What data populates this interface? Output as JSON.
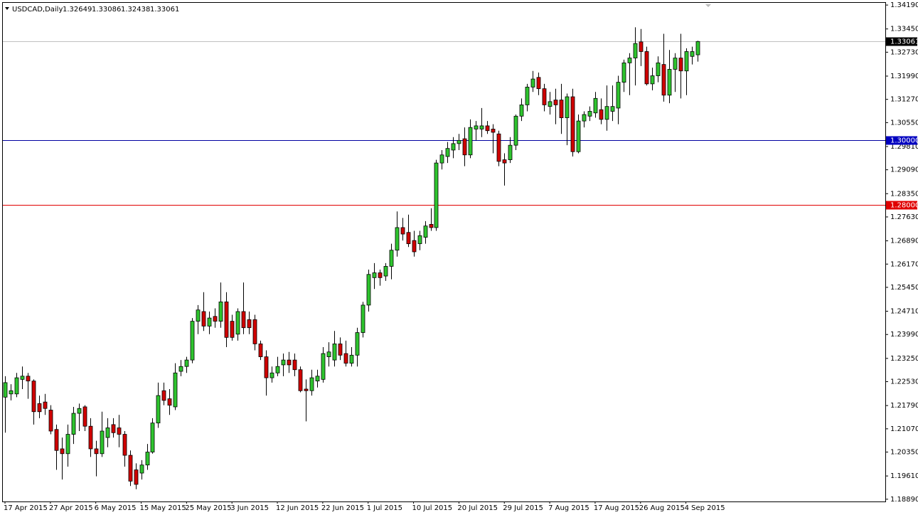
{
  "chart_data": {
    "type": "candlestick",
    "title": "USDCAD,Daily",
    "header_values": [
      "1.32649",
      "1.33086",
      "1.32438",
      "1.33061"
    ],
    "up_color": "#2ec42e",
    "down_color": "#d00000",
    "wick_color": "#000000",
    "categories": [
      "17 Apr 2015",
      null,
      null,
      null,
      null,
      null,
      null,
      null,
      "27 Apr 2015",
      null,
      null,
      null,
      null,
      null,
      null,
      null,
      "6 May 2015",
      null,
      null,
      null,
      null,
      null,
      null,
      null,
      "15 May 2015",
      null,
      null,
      null,
      null,
      null,
      null,
      null,
      "25 May 2015",
      null,
      null,
      null,
      null,
      null,
      null,
      null,
      "3 Jun 2015",
      null,
      null,
      null,
      null,
      null,
      null,
      null,
      "12 Jun 2015",
      null,
      null,
      null,
      null,
      null,
      null,
      null,
      "22 Jun 2015",
      null,
      null,
      null,
      null,
      null,
      null,
      null,
      "1 Jul 2015",
      null,
      null,
      null,
      null,
      null,
      null,
      null,
      "10 Jul 2015",
      null,
      null,
      null,
      null,
      null,
      null,
      null,
      "20 Jul 2015",
      null,
      null,
      null,
      null,
      null,
      null,
      null,
      "29 Jul 2015",
      null,
      null,
      null,
      null,
      null,
      null,
      null,
      "7 Aug 2015",
      null,
      null,
      null,
      null,
      null,
      null,
      null,
      "17 Aug 2015",
      null,
      null,
      null,
      null,
      null,
      null,
      null,
      "26 Aug 2015",
      null,
      null,
      null,
      null,
      null,
      null,
      null,
      "4 Sep 2015",
      null,
      null
    ],
    "open": [
      1.2205,
      1.2215,
      1.2215,
      1.226,
      1.227,
      1.2255,
      1.2185,
      1.219,
      1.2165,
      1.2105,
      1.2045,
      1.203,
      1.209,
      1.2155,
      1.2175,
      1.2115,
      1.2045,
      1.203,
      1.208,
      1.212,
      1.211,
      1.209,
      1.2025,
      1.198,
      1.197,
      1.1995,
      1.2035,
      1.2125,
      1.2225,
      1.22,
      1.2175,
      1.2285,
      1.23,
      1.232,
      1.244,
      1.247,
      1.2425,
      1.2455,
      1.244,
      1.25,
      1.244,
      1.24,
      1.247,
      1.2445,
      1.2445,
      1.237,
      1.233,
      1.2265,
      1.228,
      1.2305,
      1.232,
      1.232,
      1.229,
      1.223,
      1.2225,
      1.2255,
      1.226,
      1.233,
      1.232,
      1.237,
      1.234,
      1.231,
      1.2335,
      1.2405,
      1.249,
      1.2575,
      1.259,
      1.258,
      1.261,
      1.266,
      1.273,
      1.2715,
      1.269,
      1.268,
      1.27,
      1.274,
      1.273,
      1.293,
      1.295,
      1.297,
      1.299,
      1.3005,
      1.2955,
      1.3035,
      1.3035,
      1.3045,
      1.3035,
      1.302,
      1.294,
      1.294,
      1.2985,
      1.3075,
      1.311,
      1.3165,
      1.3195,
      1.316,
      1.3105,
      1.3125,
      1.3125,
      1.307,
      1.3135,
      1.2965,
      1.306,
      1.3075,
      1.3085,
      1.3095,
      1.3065,
      1.309,
      1.31,
      1.318,
      1.324,
      1.3255,
      1.3305,
      1.3275,
      1.3175,
      1.32,
      1.3235,
      1.314,
      1.322,
      1.3255,
      1.3215,
      1.326,
      1.32649
    ],
    "high": [
      1.227,
      1.2245,
      1.228,
      1.23,
      1.228,
      1.226,
      1.221,
      1.2215,
      1.218,
      1.212,
      1.208,
      1.212,
      1.2175,
      1.2185,
      1.218,
      1.214,
      1.207,
      1.216,
      1.214,
      1.214,
      1.215,
      1.21,
      1.204,
      1.2,
      1.201,
      1.206,
      1.214,
      1.225,
      1.225,
      1.223,
      1.231,
      1.232,
      1.233,
      1.245,
      1.249,
      1.253,
      1.247,
      1.248,
      1.256,
      1.253,
      1.246,
      1.248,
      1.256,
      1.247,
      1.246,
      1.238,
      1.235,
      1.23,
      1.233,
      1.234,
      1.2345,
      1.234,
      1.23,
      1.226,
      1.229,
      1.229,
      1.236,
      1.2375,
      1.241,
      1.239,
      1.238,
      1.236,
      1.242,
      1.25,
      1.26,
      1.262,
      1.26,
      1.262,
      1.268,
      1.278,
      1.276,
      1.277,
      1.272,
      1.272,
      1.275,
      1.279,
      1.294,
      1.297,
      1.2995,
      1.301,
      1.302,
      1.304,
      1.3065,
      1.306,
      1.31,
      1.306,
      1.305,
      1.303,
      1.296,
      1.301,
      1.308,
      1.313,
      1.3175,
      1.3215,
      1.321,
      1.3175,
      1.315,
      1.316,
      1.3175,
      1.3145,
      1.316,
      1.308,
      1.309,
      1.3105,
      1.315,
      1.313,
      1.317,
      1.317,
      1.32,
      1.325,
      1.327,
      1.335,
      1.3345,
      1.329,
      1.3225,
      1.326,
      1.333,
      1.328,
      1.327,
      1.333,
      1.3285,
      1.329,
      1.33086
    ],
    "low": [
      1.2095,
      1.2195,
      1.2205,
      1.223,
      1.22,
      1.212,
      1.214,
      1.215,
      1.209,
      1.198,
      1.195,
      1.199,
      1.206,
      1.21,
      1.21,
      1.202,
      1.196,
      1.202,
      1.205,
      1.208,
      1.205,
      1.199,
      1.193,
      1.192,
      1.195,
      1.198,
      1.203,
      1.211,
      1.218,
      1.215,
      1.2165,
      1.227,
      1.228,
      1.231,
      1.24,
      1.241,
      1.24,
      1.242,
      1.242,
      1.236,
      1.238,
      1.238,
      1.24,
      1.24,
      1.235,
      1.232,
      1.221,
      1.225,
      1.227,
      1.227,
      1.228,
      1.227,
      1.222,
      1.213,
      1.221,
      1.2235,
      1.225,
      1.23,
      1.23,
      1.232,
      1.23,
      1.23,
      1.23,
      1.239,
      1.247,
      1.254,
      1.255,
      1.2565,
      1.257,
      1.264,
      1.269,
      1.267,
      1.264,
      1.266,
      1.268,
      1.272,
      1.272,
      1.291,
      1.293,
      1.2945,
      1.297,
      1.292,
      1.2945,
      1.3,
      1.301,
      1.302,
      1.296,
      1.292,
      1.286,
      1.293,
      1.297,
      1.306,
      1.309,
      1.315,
      1.314,
      1.309,
      1.308,
      1.305,
      1.302,
      1.2985,
      1.295,
      1.296,
      1.304,
      1.306,
      1.307,
      1.305,
      1.303,
      1.306,
      1.305,
      1.315,
      1.314,
      1.317,
      1.323,
      1.317,
      1.3155,
      1.318,
      1.312,
      1.3115,
      1.315,
      1.313,
      1.314,
      1.3235,
      1.32438
    ],
    "close": [
      1.225,
      1.2225,
      1.2265,
      1.227,
      1.2255,
      1.216,
      1.216,
      1.217,
      1.21,
      1.204,
      1.203,
      1.209,
      1.2155,
      1.217,
      1.2115,
      1.2045,
      1.203,
      1.21,
      1.211,
      1.2095,
      1.209,
      1.2025,
      1.1945,
      1.1935,
      1.1995,
      1.2035,
      1.2125,
      1.221,
      1.2195,
      1.218,
      1.228,
      1.23,
      1.232,
      1.244,
      1.2475,
      1.2425,
      1.245,
      1.244,
      1.25,
      1.239,
      1.239,
      1.247,
      1.242,
      1.242,
      1.237,
      1.233,
      1.2265,
      1.228,
      1.23,
      1.232,
      1.2305,
      1.229,
      1.2225,
      1.2225,
      1.2265,
      1.227,
      1.234,
      1.2345,
      1.237,
      1.2335,
      1.231,
      1.2335,
      1.2405,
      1.249,
      1.2585,
      1.259,
      1.2575,
      1.261,
      1.266,
      1.273,
      1.271,
      1.268,
      1.2655,
      1.2705,
      1.2735,
      1.273,
      1.293,
      1.2955,
      1.2975,
      1.299,
      1.3,
      1.2955,
      1.304,
      1.3045,
      1.3045,
      1.303,
      1.3025,
      1.2935,
      1.293,
      1.2985,
      1.3075,
      1.311,
      1.3165,
      1.319,
      1.316,
      1.311,
      1.312,
      1.311,
      1.307,
      1.3135,
      1.2965,
      1.306,
      1.308,
      1.309,
      1.313,
      1.3065,
      1.3105,
      1.3105,
      1.318,
      1.324,
      1.3255,
      1.33,
      1.3275,
      1.3175,
      1.32,
      1.324,
      1.314,
      1.322,
      1.3255,
      1.3215,
      1.3275,
      1.3275,
      1.33061
    ],
    "ylim": [
      1.1882,
      1.3428
    ],
    "yticks": [
      {
        "value": 1.3419,
        "label": "1.34190"
      },
      {
        "value": 1.3345,
        "label": "1.33450"
      },
      {
        "value": 1.3273,
        "label": "1.32730"
      },
      {
        "value": 1.3199,
        "label": "1.31990"
      },
      {
        "value": 1.3127,
        "label": "1.31270"
      },
      {
        "value": 1.3055,
        "label": "1.30550"
      },
      {
        "value": 1.2981,
        "label": "1.29810"
      },
      {
        "value": 1.2909,
        "label": "1.29090"
      },
      {
        "value": 1.2835,
        "label": "1.28350"
      },
      {
        "value": 1.2763,
        "label": "1.27630"
      },
      {
        "value": 1.2689,
        "label": "1.26890"
      },
      {
        "value": 1.2617,
        "label": "1.26170"
      },
      {
        "value": 1.2545,
        "label": "1.25450"
      },
      {
        "value": 1.2471,
        "label": "1.24710"
      },
      {
        "value": 1.2399,
        "label": "1.23990"
      },
      {
        "value": 1.2325,
        "label": "1.23250"
      },
      {
        "value": 1.2253,
        "label": "1.22530"
      },
      {
        "value": 1.2179,
        "label": "1.21790"
      },
      {
        "value": 1.2107,
        "label": "1.21070"
      },
      {
        "value": 1.2035,
        "label": "1.20350"
      },
      {
        "value": 1.1961,
        "label": "1.19610"
      },
      {
        "value": 1.1889,
        "label": "1.18890"
      }
    ],
    "grid": false,
    "hlines": [
      {
        "value": 1.33061,
        "label": "1.33061",
        "color": "#c0c0c0",
        "label_color": "#000000"
      },
      {
        "value": 1.3,
        "label": "1.30000",
        "color": "#0000a0",
        "label_color": "#0000c0"
      },
      {
        "value": 1.28,
        "label": "1.28000",
        "color": "#e00000",
        "label_color": "#e00000"
      }
    ]
  }
}
